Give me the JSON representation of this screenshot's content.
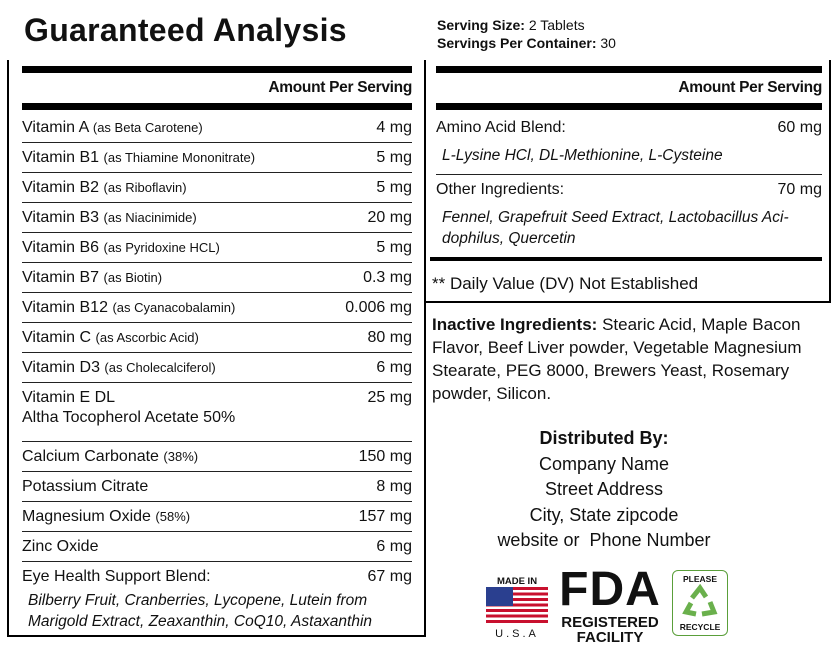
{
  "header": {
    "title": "Guaranteed Analysis",
    "serving_size": {
      "label": "Serving Size:",
      "value": "2 Tablets"
    },
    "servings_per_container": {
      "label": "Servings Per Container:",
      "value": "30"
    }
  },
  "left_table": {
    "column_header": "Amount Per Serving",
    "rows": [
      {
        "name": "Vitamin A",
        "detail": "(as Beta Carotene)",
        "amount": "4 mg"
      },
      {
        "name": "Vitamin B1",
        "detail": "(as Thiamine Mononitrate)",
        "amount": "5 mg"
      },
      {
        "name": "Vitamin B2",
        "detail": "(as Riboflavin)",
        "amount": "5 mg"
      },
      {
        "name": "Vitamin B3",
        "detail": "(as Niacinimide)",
        "amount": "20 mg"
      },
      {
        "name": "Vitamin B6",
        "detail": "(as Pyridoxine HCL)",
        "amount": "5 mg"
      },
      {
        "name": "Vitamin B7",
        "detail": "(as Biotin)",
        "amount": "0.3 mg"
      },
      {
        "name": "Vitamin B12",
        "detail": "(as Cyanacobalamin)",
        "amount": "0.006 mg"
      },
      {
        "name": "Vitamin C",
        "detail": "(as Ascorbic Acid)",
        "amount": "80 mg"
      },
      {
        "name": "Vitamin D3",
        "detail": "(as Cholecalciferol)",
        "amount": "6 mg"
      },
      {
        "name": "Vitamin E DL",
        "second_line": "Altha Tocopherol Acetate 50%",
        "amount": "25 mg"
      },
      {
        "name": "Calcium Carbonate",
        "detail": "(38%)",
        "amount": "150 mg"
      },
      {
        "name": "Potassium Citrate",
        "amount": "8 mg"
      },
      {
        "name": "Magnesium Oxide",
        "detail": "(58%)",
        "amount": "157 mg"
      },
      {
        "name": "Zinc Oxide",
        "amount": "6 mg"
      },
      {
        "name": "Eye Health Support Blend:",
        "amount": "67 mg",
        "ingredients": "Bilberry Fruit, Cranberries, Lycopene, Lutein from Marigold Extract, Zeaxanthin, CoQ10, Astaxanthin"
      }
    ]
  },
  "right_table": {
    "column_header": "Amount Per Serving",
    "rows": [
      {
        "name": "Amino Acid Blend:",
        "amount": "60 mg",
        "ingredients": "L-Lysine HCl, DL-Methionine, L-Cysteine"
      },
      {
        "name": "Other Ingredients:",
        "amount": "70 mg",
        "ingredients": "Fennel, Grapefruit Seed Extract, Lactobacillus Aci-dophilus, Quercetin"
      }
    ],
    "footnote": "** Daily Value (DV) Not Established"
  },
  "inactive": {
    "label": "Inactive Ingredients:",
    "text": "Stearic Acid, Maple Bacon Flavor, Beef Liver powder, Vegetable Magnesium Stearate, PEG 8000, Brewers Yeast, Rosemary powder, Silicon."
  },
  "distributor": {
    "heading": "Distributed By:",
    "lines": [
      "Company Name",
      "Street Address",
      "City, State zipcode",
      "website or  Phone Number"
    ]
  },
  "badges": {
    "made_in": {
      "top": "MADE IN",
      "bottom": "U.S.A"
    },
    "fda": {
      "big": "FDA",
      "line1": "REGISTERED",
      "line2": "FACILITY"
    },
    "recycle": {
      "top": "PLEASE",
      "bottom": "RECYCLE"
    }
  }
}
